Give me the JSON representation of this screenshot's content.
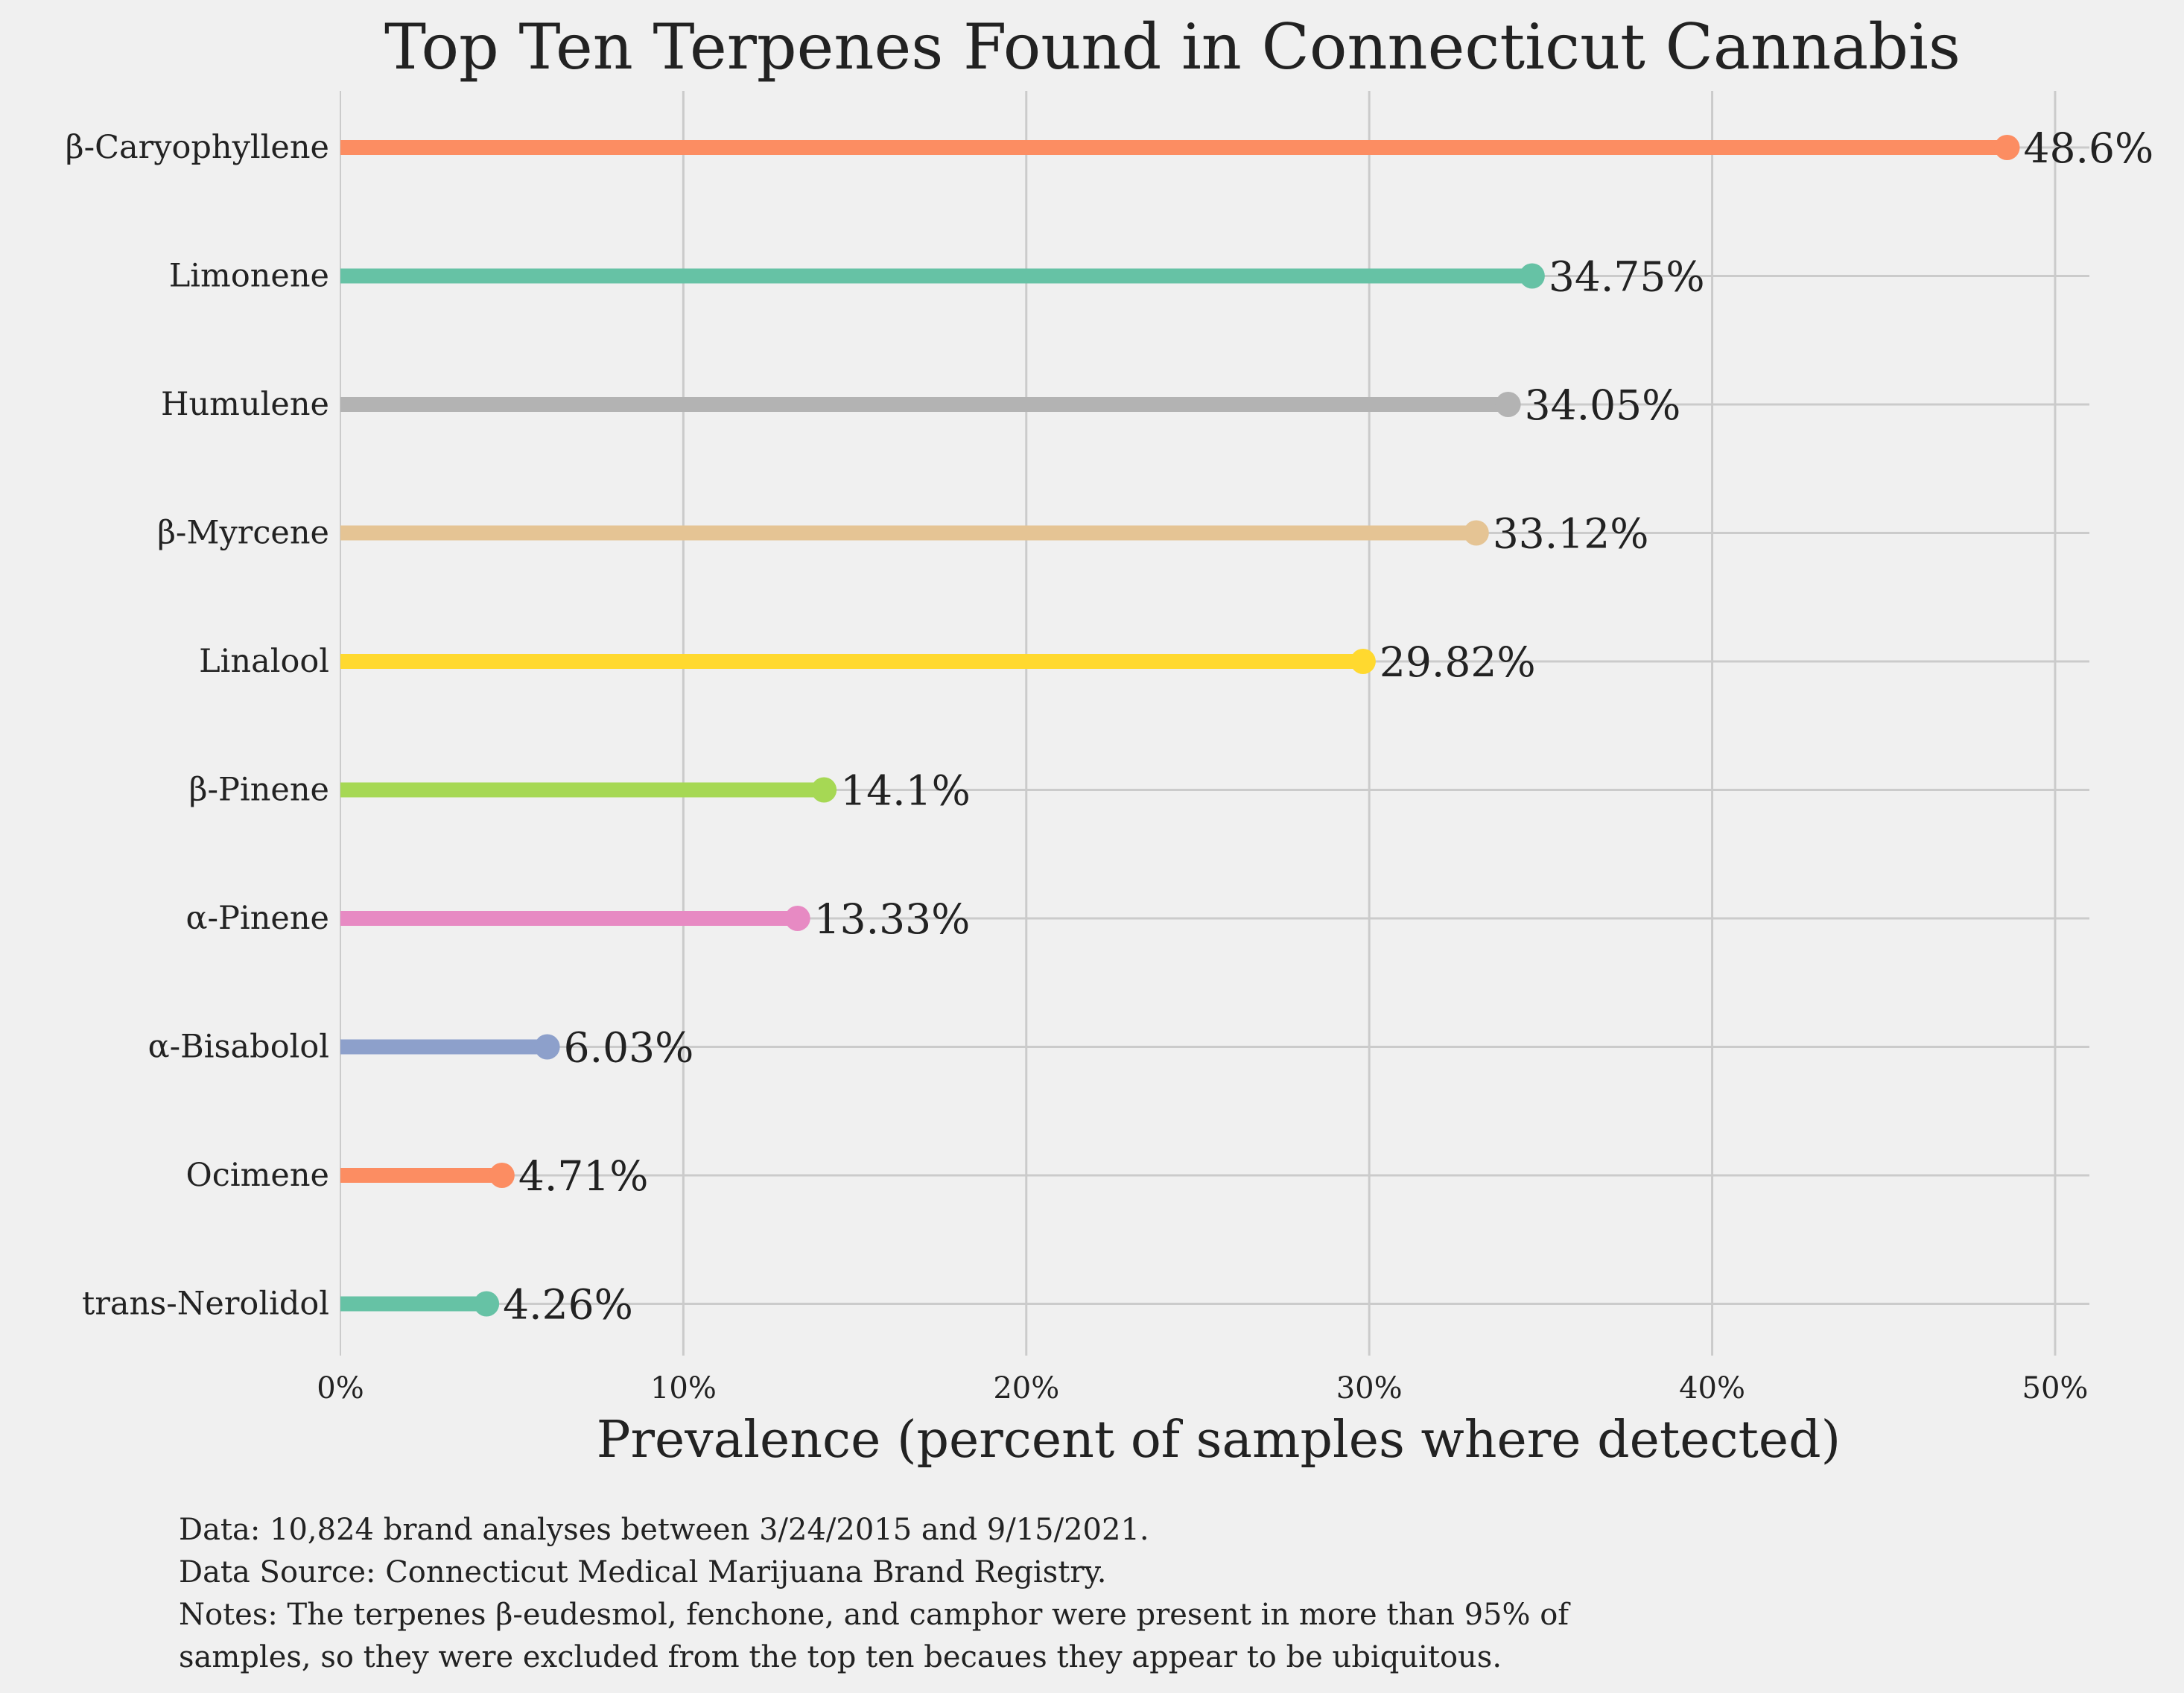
{
  "chart_data": {
    "type": "lollipop",
    "title": "Top Ten Terpenes Found in Connecticut Cannabis",
    "xlabel": "Prevalence (percent of samples where detected)",
    "ylabel": "",
    "xlim": [
      0,
      51
    ],
    "x_ticks": [
      0,
      10,
      20,
      30,
      40,
      50
    ],
    "x_tick_labels": [
      "0%",
      "10%",
      "20%",
      "30%",
      "40%",
      "50%"
    ],
    "grid": true,
    "orientation": "horizontal",
    "categories": [
      "β-Caryophyllene",
      "Limonene",
      "Humulene",
      "β-Myrcene",
      "Linalool",
      "β-Pinene",
      "α-Pinene",
      "α-Bisabolol",
      "Ocimene",
      "trans-Nerolidol"
    ],
    "values": [
      48.6,
      34.75,
      34.05,
      33.12,
      29.82,
      14.1,
      13.33,
      6.03,
      4.71,
      4.26
    ],
    "value_labels": [
      "48.6%",
      "34.75%",
      "34.05%",
      "33.12%",
      "29.82%",
      "14.1%",
      "13.33%",
      "6.03%",
      "4.71%",
      "4.26%"
    ],
    "colors": [
      "#fc8d62",
      "#66c2a5",
      "#b3b3b3",
      "#e5c494",
      "#ffd92f",
      "#a6d854",
      "#e78ac3",
      "#8da0cb",
      "#fc8d62",
      "#66c2a5"
    ]
  },
  "notes": [
    "Data: 10,824 brand analyses between 3/24/2015 and 9/15/2021.",
    "Data Source: Connecticut Medical Marijuana Brand Registry.",
    "Notes: The terpenes β-eudesmol, fenchone, and camphor were present in more than 95% of",
    "samples, so they were excluded from the top ten becaues they appear to be ubiquitous."
  ]
}
